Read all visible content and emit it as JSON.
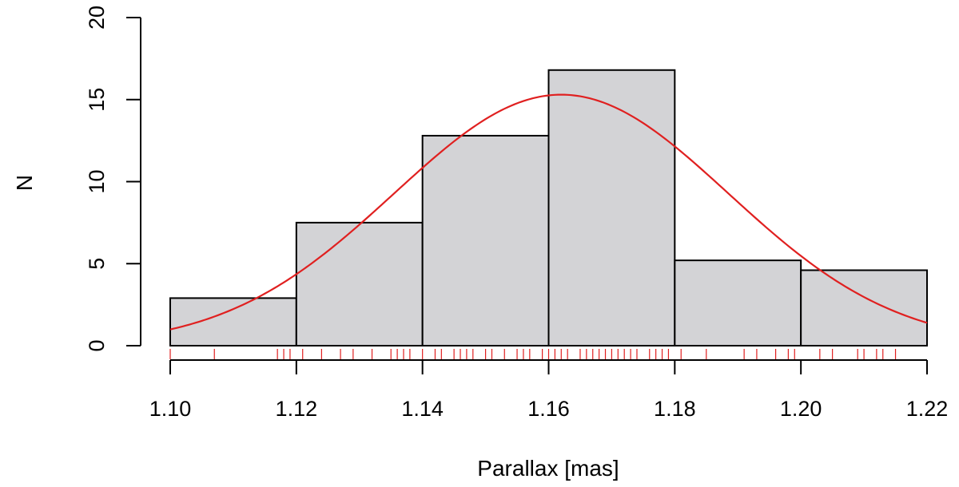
{
  "chart_data": {
    "type": "bar",
    "subtype": "histogram with fitted normal curve and rug plot",
    "title": "",
    "xlabel": "Parallax [mas]",
    "ylabel": "N",
    "xlim": [
      1.1,
      1.22
    ],
    "ylim": [
      0,
      20
    ],
    "x_ticks": [
      1.1,
      1.12,
      1.14,
      1.16,
      1.18,
      1.2,
      1.22
    ],
    "x_tick_labels": [
      "1.10",
      "1.12",
      "1.14",
      "1.16",
      "1.18",
      "1.20",
      "1.22"
    ],
    "y_ticks": [
      0,
      5,
      10,
      15,
      20
    ],
    "y_tick_labels": [
      "0",
      "5",
      "10",
      "15",
      "20"
    ],
    "bins": [
      {
        "start": 1.1,
        "end": 1.12,
        "value": 2.9
      },
      {
        "start": 1.12,
        "end": 1.14,
        "value": 7.5
      },
      {
        "start": 1.14,
        "end": 1.16,
        "value": 12.8
      },
      {
        "start": 1.16,
        "end": 1.18,
        "value": 16.8
      },
      {
        "start": 1.18,
        "end": 1.2,
        "value": 5.2
      },
      {
        "start": 1.2,
        "end": 1.22,
        "value": 4.6
      }
    ],
    "fit_curve": {
      "type": "normal",
      "peak_x": 1.162,
      "peak_y": 15.3,
      "sigma": 0.0265
    },
    "rug": [
      1.1,
      1.107,
      1.117,
      1.118,
      1.119,
      1.121,
      1.124,
      1.127,
      1.129,
      1.132,
      1.135,
      1.136,
      1.137,
      1.138,
      1.14,
      1.142,
      1.143,
      1.145,
      1.146,
      1.147,
      1.148,
      1.15,
      1.151,
      1.153,
      1.155,
      1.156,
      1.157,
      1.159,
      1.16,
      1.161,
      1.162,
      1.163,
      1.165,
      1.166,
      1.167,
      1.168,
      1.169,
      1.17,
      1.171,
      1.172,
      1.173,
      1.174,
      1.176,
      1.177,
      1.178,
      1.179,
      1.181,
      1.185,
      1.191,
      1.193,
      1.196,
      1.198,
      1.199,
      1.203,
      1.205,
      1.209,
      1.21,
      1.212,
      1.213,
      1.215
    ],
    "grid": false,
    "legend": "none",
    "colors": {
      "bar_fill": "#d3d3d6",
      "bar_stroke": "#000000",
      "curve": "#e02020",
      "rug": "#e02020",
      "axis": "#000000"
    }
  }
}
